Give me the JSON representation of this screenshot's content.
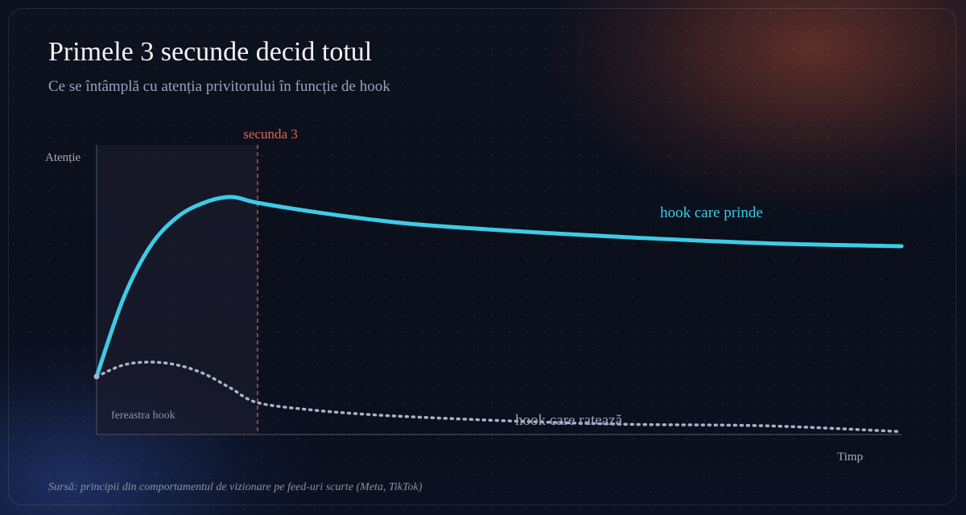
{
  "header": {
    "title": "Primele 3 secunde decid totul",
    "subtitle": "Ce se întâmplă cu atenția privitorului în funcție de hook"
  },
  "footer": {
    "source": "Sursă: principii din comportamentul de vizionare pe feed-uri scurte (Meta, TikTok)"
  },
  "colors": {
    "good_series": "#3ecbe6",
    "bad_series": "#aab2c6",
    "marker": "#e6624e",
    "window_fill": "#1b1b2c"
  },
  "chart_data": {
    "type": "line",
    "title": "Primele 3 secunde decid totul",
    "subtitle": "Ce se întâmplă cu atenția privitorului în funcție de hook",
    "xlabel": "Timp",
    "ylabel": "Atenție",
    "xlim": [
      0,
      15
    ],
    "ylim": [
      0,
      1
    ],
    "grid": false,
    "legend": "inline labels",
    "axis_ticks": "none",
    "marker_line": {
      "x": 3,
      "label": "secunda 3",
      "style": "dashed"
    },
    "shaded_window": {
      "from": 0,
      "to": 3,
      "label": "fereastra hook"
    },
    "series": [
      {
        "name": "hook care prinde",
        "style": "solid",
        "x": [
          0,
          0.5,
          1,
          1.5,
          2,
          2.5,
          3,
          4,
          5,
          6,
          8,
          10,
          12.5,
          15
        ],
        "y": [
          0.2,
          0.47,
          0.65,
          0.75,
          0.8,
          0.82,
          0.8,
          0.77,
          0.745,
          0.725,
          0.7,
          0.68,
          0.66,
          0.65
        ]
      },
      {
        "name": "hook care ratează",
        "style": "dotted",
        "x": [
          0,
          0.5,
          1,
          1.5,
          2,
          2.5,
          3,
          4,
          5,
          6,
          8,
          10,
          12.5,
          15
        ],
        "y": [
          0.2,
          0.24,
          0.25,
          0.24,
          0.21,
          0.16,
          0.11,
          0.085,
          0.07,
          0.06,
          0.045,
          0.035,
          0.03,
          0.01
        ]
      }
    ]
  }
}
